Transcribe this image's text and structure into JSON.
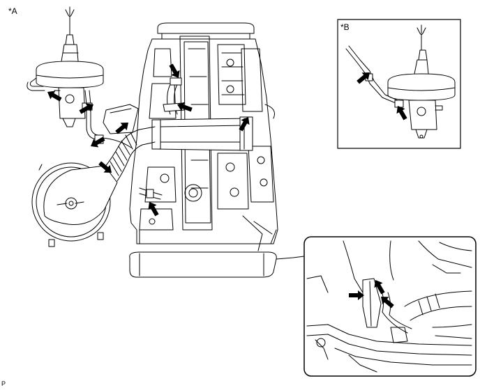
{
  "labels": {
    "view_a": "*A",
    "view_b": "*B",
    "corner": "P"
  },
  "colors": {
    "line": "#000000",
    "background": "#ffffff"
  },
  "icons": {
    "arrow": "black-pointer-arrow"
  }
}
